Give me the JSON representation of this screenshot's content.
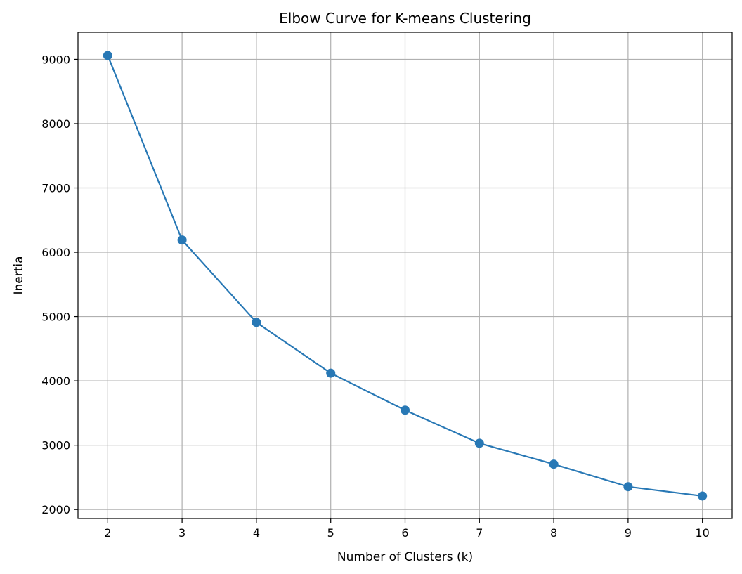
{
  "chart_data": {
    "type": "line",
    "title": "Elbow Curve for K-means Clustering",
    "xlabel": "Number of Clusters (k)",
    "ylabel": "Inertia",
    "x": [
      2,
      3,
      4,
      5,
      6,
      7,
      8,
      9,
      10
    ],
    "series": [
      {
        "values": [
          9060,
          6190,
          4910,
          4120,
          3545,
          3030,
          2705,
          2355,
          2210
        ],
        "color": "#2878b5",
        "marker": "circle"
      }
    ],
    "xticks": [
      "2",
      "3",
      "4",
      "5",
      "6",
      "7",
      "8",
      "9",
      "10"
    ],
    "yticks": [
      "2000",
      "3000",
      "4000",
      "5000",
      "6000",
      "7000",
      "8000",
      "9000"
    ],
    "xlim": [
      1.6,
      10.4
    ],
    "ylim": [
      1860,
      9420
    ],
    "grid": true,
    "legend": false
  }
}
